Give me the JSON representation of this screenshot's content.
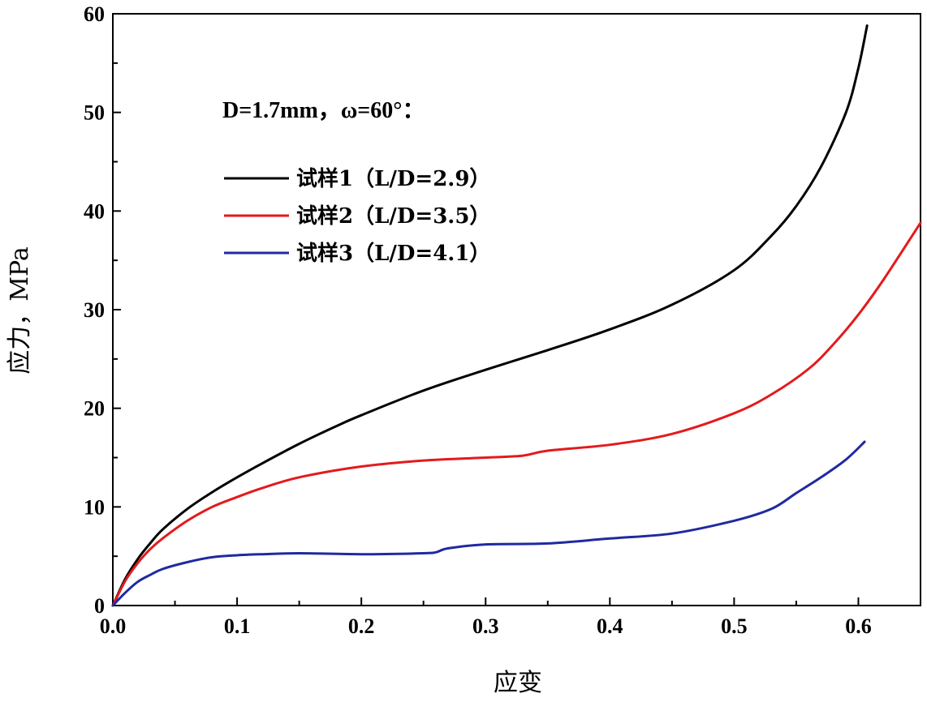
{
  "chart_data": {
    "type": "line",
    "title": "",
    "xlabel": "应变",
    "ylabel": "应力，MPa",
    "xlim": [
      0.0,
      0.65
    ],
    "ylim": [
      0,
      60
    ],
    "xticks": [
      0.0,
      0.1,
      0.2,
      0.3,
      0.4,
      0.5,
      0.6
    ],
    "xtick_labels": [
      "0.0",
      "0.1",
      "0.2",
      "0.3",
      "0.4",
      "0.5",
      "0.6"
    ],
    "yticks": [
      0,
      10,
      20,
      30,
      40,
      50,
      60
    ],
    "ytick_labels": [
      "0",
      "10",
      "20",
      "30",
      "40",
      "50",
      "60"
    ],
    "grid": false,
    "legend_position": "upper-left",
    "annotation": "D=1.7mm，ω=60°：",
    "series": [
      {
        "name": "试样1（L/D=2.9）",
        "color": "#000000",
        "x": [
          0.0,
          0.01,
          0.02,
          0.03,
          0.04,
          0.06,
          0.08,
          0.1,
          0.12,
          0.15,
          0.18,
          0.2,
          0.25,
          0.3,
          0.35,
          0.4,
          0.45,
          0.5,
          0.53,
          0.55,
          0.57,
          0.59,
          0.6,
          0.607
        ],
        "y": [
          0.0,
          2.7,
          4.7,
          6.3,
          7.7,
          9.8,
          11.5,
          13.0,
          14.4,
          16.4,
          18.2,
          19.3,
          21.8,
          23.9,
          25.9,
          28.0,
          30.5,
          34.0,
          37.5,
          40.5,
          44.5,
          50.0,
          54.5,
          58.8
        ]
      },
      {
        "name": "试样2（L/D=3.5）",
        "color": "#e31a1c",
        "x": [
          0.0,
          0.01,
          0.02,
          0.03,
          0.04,
          0.06,
          0.08,
          0.1,
          0.12,
          0.15,
          0.2,
          0.25,
          0.3,
          0.33,
          0.35,
          0.4,
          0.45,
          0.5,
          0.53,
          0.56,
          0.58,
          0.6,
          0.62,
          0.65
        ],
        "y": [
          0.0,
          2.5,
          4.3,
          5.7,
          6.8,
          8.6,
          10.0,
          11.0,
          11.9,
          13.0,
          14.1,
          14.7,
          15.0,
          15.2,
          15.7,
          16.3,
          17.4,
          19.5,
          21.4,
          24.0,
          26.5,
          29.5,
          33.0,
          38.8
        ]
      },
      {
        "name": "试样3（L/D=4.1）",
        "color": "#1f2aa0",
        "x": [
          0.0,
          0.01,
          0.02,
          0.03,
          0.04,
          0.06,
          0.08,
          0.1,
          0.12,
          0.15,
          0.2,
          0.25,
          0.26,
          0.27,
          0.3,
          0.35,
          0.4,
          0.45,
          0.5,
          0.53,
          0.55,
          0.57,
          0.59,
          0.605
        ],
        "y": [
          0.0,
          1.3,
          2.4,
          3.1,
          3.7,
          4.4,
          4.9,
          5.1,
          5.2,
          5.3,
          5.2,
          5.3,
          5.4,
          5.8,
          6.2,
          6.3,
          6.8,
          7.3,
          8.6,
          9.8,
          11.4,
          13.0,
          14.8,
          16.6
        ]
      }
    ]
  }
}
